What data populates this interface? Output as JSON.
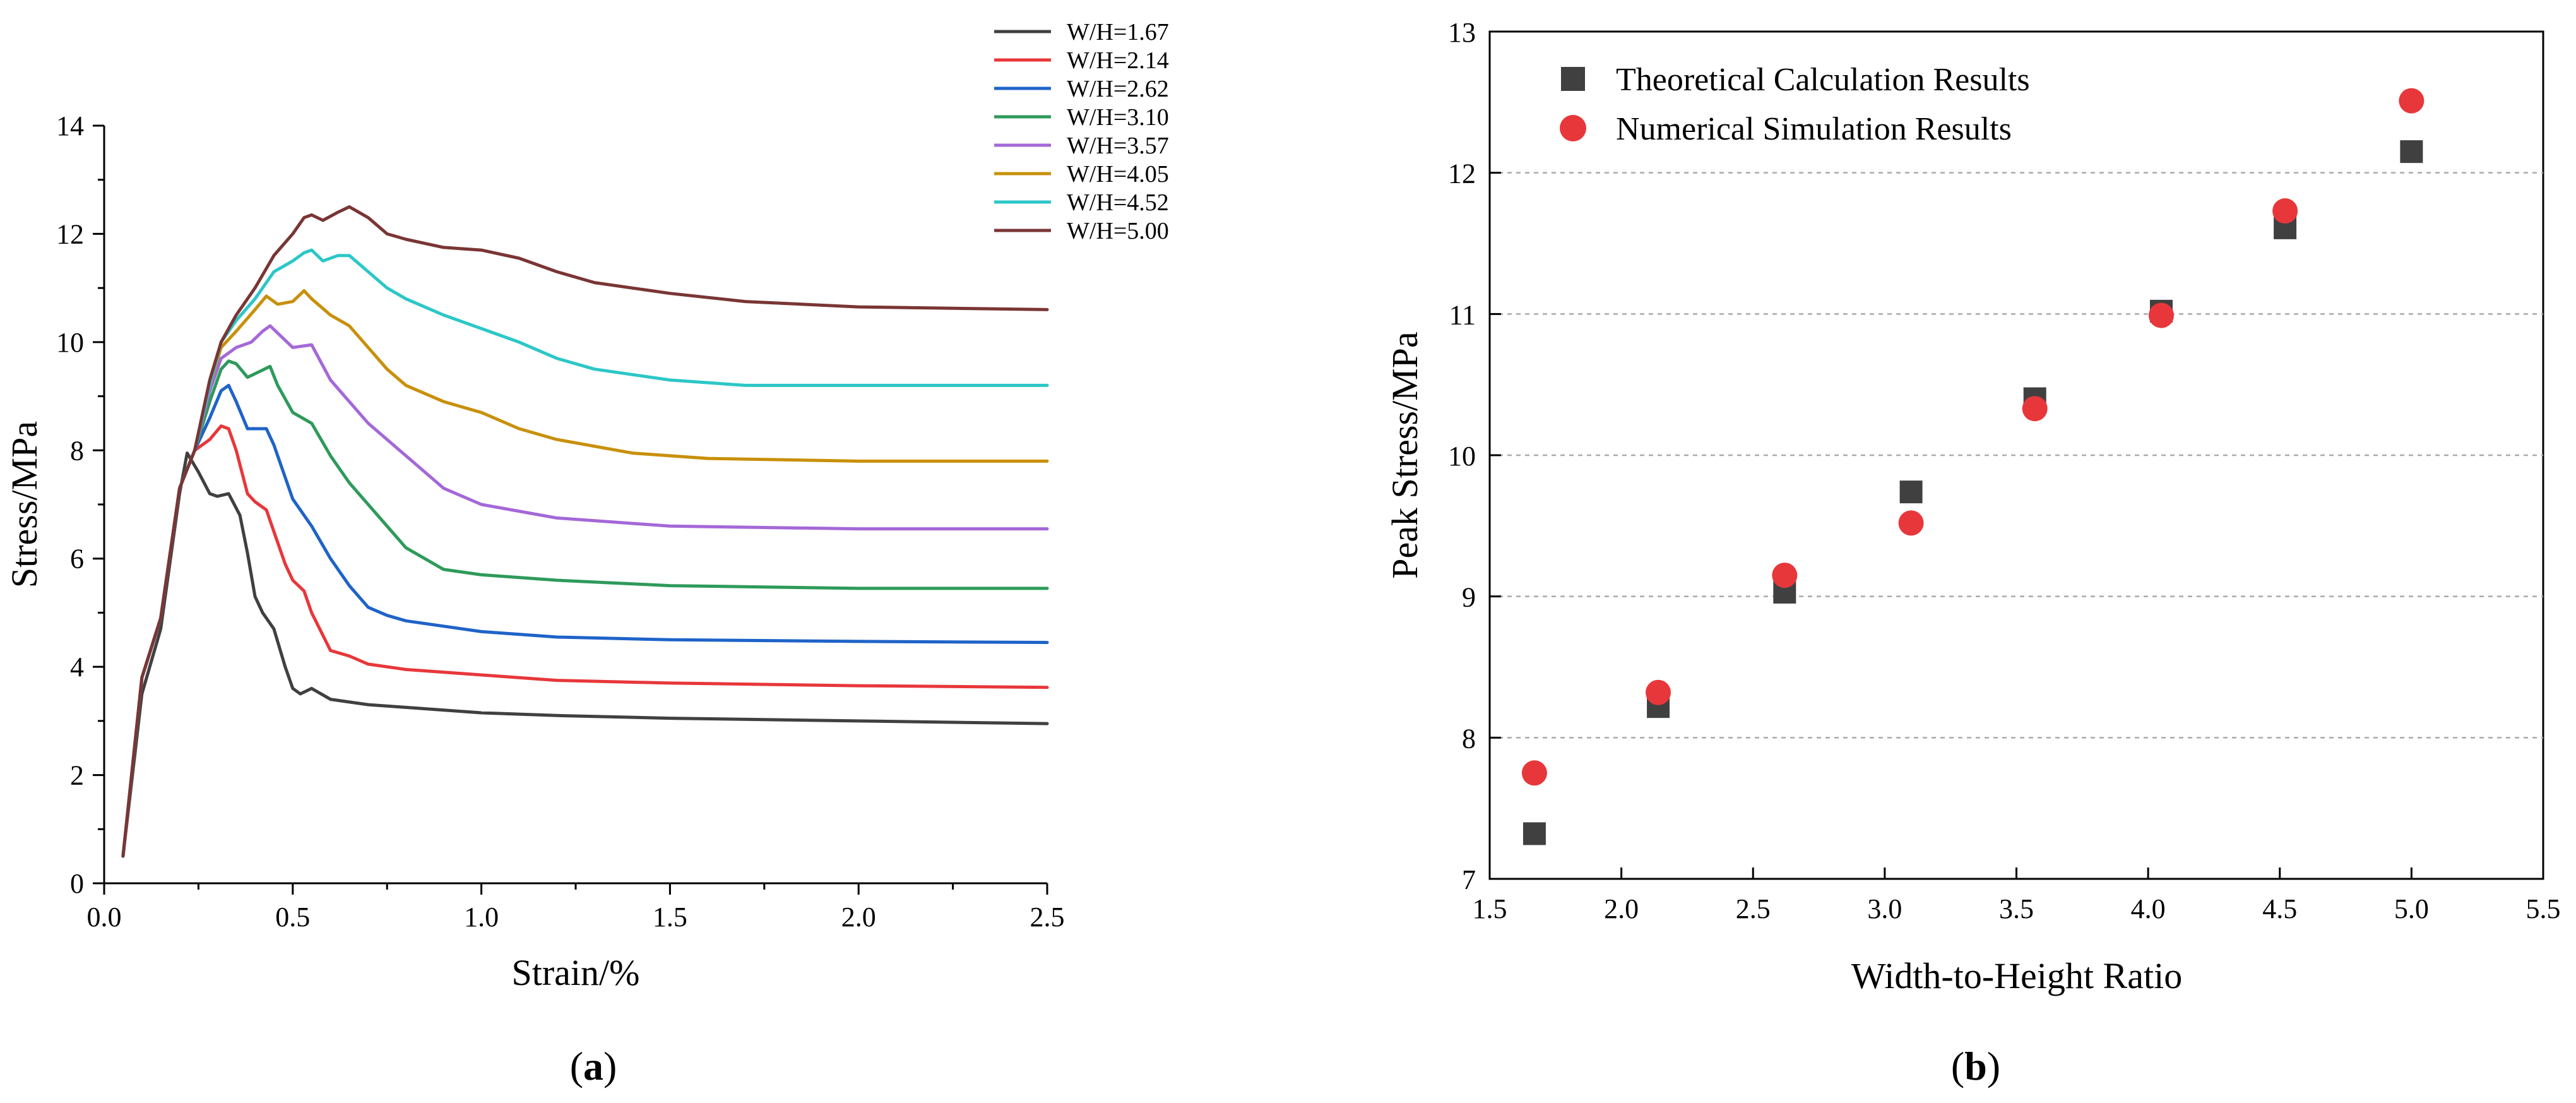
{
  "chart_data": [
    {
      "type": "line",
      "title": "",
      "panel_label": "a",
      "xlabel": "Strain/%",
      "ylabel": "Stress/MPa",
      "xlim": [
        0.0,
        2.5
      ],
      "ylim": [
        0,
        14
      ],
      "xticks": [
        0.0,
        0.5,
        1.0,
        1.5,
        2.0,
        2.5
      ],
      "xtick_labels": [
        "0.0",
        "0.5",
        "1.0",
        "1.5",
        "2.0",
        "2.5"
      ],
      "yticks": [
        0,
        2,
        4,
        6,
        8,
        10,
        12,
        14
      ],
      "ytick_labels": [
        "0",
        "2",
        "4",
        "6",
        "8",
        "10",
        "12",
        "14"
      ],
      "legend_position": "top-right",
      "series": [
        {
          "name": "W/H=1.67",
          "color": "#404040",
          "x": [
            0.05,
            0.1,
            0.15,
            0.2,
            0.22,
            0.25,
            0.28,
            0.3,
            0.33,
            0.36,
            0.38,
            0.4,
            0.42,
            0.45,
            0.48,
            0.5,
            0.52,
            0.55,
            0.6,
            0.65,
            0.7,
            0.8,
            1.0,
            1.2,
            1.5,
            2.0,
            2.5
          ],
          "y": [
            0.5,
            3.5,
            4.7,
            7.2,
            7.95,
            7.6,
            7.2,
            7.15,
            7.2,
            6.8,
            6.1,
            5.3,
            5.0,
            4.7,
            4.0,
            3.6,
            3.5,
            3.6,
            3.4,
            3.35,
            3.3,
            3.25,
            3.15,
            3.1,
            3.05,
            3.0,
            2.95
          ]
        },
        {
          "name": "W/H=2.14",
          "color": "#e8373a",
          "x": [
            0.05,
            0.1,
            0.15,
            0.2,
            0.24,
            0.28,
            0.31,
            0.33,
            0.35,
            0.38,
            0.4,
            0.43,
            0.45,
            0.48,
            0.5,
            0.53,
            0.55,
            0.6,
            0.65,
            0.7,
            0.8,
            1.0,
            1.2,
            1.5,
            2.0,
            2.5
          ],
          "y": [
            0.5,
            3.8,
            4.9,
            7.3,
            8.0,
            8.2,
            8.45,
            8.4,
            8.0,
            7.2,
            7.05,
            6.9,
            6.5,
            5.9,
            5.6,
            5.4,
            5.0,
            4.3,
            4.2,
            4.05,
            3.95,
            3.85,
            3.75,
            3.7,
            3.65,
            3.62
          ]
        },
        {
          "name": "W/H=2.62",
          "color": "#1e63c8",
          "x": [
            0.05,
            0.1,
            0.15,
            0.2,
            0.24,
            0.28,
            0.31,
            0.33,
            0.35,
            0.38,
            0.4,
            0.43,
            0.45,
            0.48,
            0.5,
            0.55,
            0.6,
            0.65,
            0.7,
            0.75,
            0.8,
            1.0,
            1.2,
            1.5,
            2.0,
            2.5
          ],
          "y": [
            0.5,
            3.8,
            4.9,
            7.3,
            8.0,
            8.6,
            9.1,
            9.2,
            8.9,
            8.4,
            8.4,
            8.4,
            8.1,
            7.5,
            7.1,
            6.6,
            6.0,
            5.5,
            5.1,
            4.95,
            4.85,
            4.65,
            4.55,
            4.5,
            4.47,
            4.45
          ]
        },
        {
          "name": "W/H=3.10",
          "color": "#2e9a5a",
          "x": [
            0.05,
            0.1,
            0.15,
            0.2,
            0.24,
            0.28,
            0.31,
            0.33,
            0.35,
            0.38,
            0.41,
            0.44,
            0.46,
            0.5,
            0.55,
            0.6,
            0.65,
            0.7,
            0.75,
            0.8,
            0.9,
            1.0,
            1.2,
            1.5,
            2.0,
            2.5
          ],
          "y": [
            0.5,
            3.8,
            4.9,
            7.3,
            8.0,
            8.9,
            9.5,
            9.65,
            9.6,
            9.35,
            9.45,
            9.55,
            9.2,
            8.7,
            8.5,
            7.9,
            7.4,
            7.0,
            6.6,
            6.2,
            5.8,
            5.7,
            5.6,
            5.5,
            5.45,
            5.45
          ]
        },
        {
          "name": "W/H=3.57",
          "color": "#a468d8",
          "x": [
            0.05,
            0.1,
            0.15,
            0.2,
            0.24,
            0.28,
            0.31,
            0.35,
            0.39,
            0.42,
            0.44,
            0.47,
            0.5,
            0.55,
            0.6,
            0.65,
            0.7,
            0.75,
            0.8,
            0.85,
            0.9,
            1.0,
            1.2,
            1.5,
            2.0,
            2.5
          ],
          "y": [
            0.5,
            3.8,
            4.9,
            7.3,
            8.0,
            9.1,
            9.7,
            9.9,
            10.0,
            10.2,
            10.3,
            10.1,
            9.9,
            9.95,
            9.3,
            8.9,
            8.5,
            8.2,
            7.9,
            7.6,
            7.3,
            7.0,
            6.75,
            6.6,
            6.55,
            6.55
          ]
        },
        {
          "name": "W/H=4.05",
          "color": "#c8900a",
          "x": [
            0.05,
            0.1,
            0.15,
            0.2,
            0.24,
            0.28,
            0.31,
            0.35,
            0.4,
            0.43,
            0.46,
            0.5,
            0.53,
            0.55,
            0.6,
            0.65,
            0.7,
            0.75,
            0.8,
            0.9,
            1.0,
            1.1,
            1.2,
            1.4,
            1.6,
            2.0,
            2.5
          ],
          "y": [
            0.5,
            3.8,
            4.9,
            7.3,
            8.0,
            9.2,
            9.9,
            10.2,
            10.6,
            10.85,
            10.7,
            10.75,
            10.95,
            10.8,
            10.5,
            10.3,
            9.9,
            9.5,
            9.2,
            8.9,
            8.7,
            8.4,
            8.2,
            7.95,
            7.85,
            7.8,
            7.8
          ]
        },
        {
          "name": "W/H=4.52",
          "color": "#2cc7c7",
          "x": [
            0.05,
            0.1,
            0.15,
            0.2,
            0.24,
            0.28,
            0.31,
            0.35,
            0.4,
            0.45,
            0.5,
            0.53,
            0.55,
            0.58,
            0.62,
            0.65,
            0.7,
            0.75,
            0.8,
            0.9,
            1.0,
            1.1,
            1.2,
            1.3,
            1.5,
            1.7,
            2.0,
            2.5
          ],
          "y": [
            0.5,
            3.8,
            4.9,
            7.3,
            8.0,
            9.2,
            10.0,
            10.4,
            10.8,
            11.3,
            11.5,
            11.65,
            11.7,
            11.5,
            11.6,
            11.6,
            11.3,
            11.0,
            10.8,
            10.5,
            10.25,
            10.0,
            9.7,
            9.5,
            9.3,
            9.2,
            9.2,
            9.2
          ]
        },
        {
          "name": "W/H=5.00",
          "color": "#7a3535",
          "x": [
            0.05,
            0.1,
            0.15,
            0.2,
            0.24,
            0.28,
            0.31,
            0.35,
            0.4,
            0.45,
            0.5,
            0.53,
            0.55,
            0.58,
            0.62,
            0.65,
            0.7,
            0.75,
            0.8,
            0.9,
            1.0,
            1.1,
            1.2,
            1.3,
            1.5,
            1.7,
            2.0,
            2.5
          ],
          "y": [
            0.5,
            3.8,
            4.9,
            7.3,
            8.0,
            9.3,
            10.0,
            10.5,
            11.0,
            11.6,
            12.0,
            12.3,
            12.35,
            12.25,
            12.4,
            12.5,
            12.3,
            12.0,
            11.9,
            11.75,
            11.7,
            11.55,
            11.3,
            11.1,
            10.9,
            10.75,
            10.65,
            10.6
          ]
        }
      ]
    },
    {
      "type": "scatter",
      "title": "",
      "panel_label": "b",
      "xlabel": "Width-to-Height Ratio",
      "ylabel": "Peak Stress/MPa",
      "xlim": [
        1.5,
        5.5
      ],
      "ylim": [
        7,
        13
      ],
      "xticks": [
        1.5,
        2.0,
        2.5,
        3.0,
        3.5,
        4.0,
        4.5,
        5.0,
        5.5
      ],
      "xtick_labels": [
        "1.5",
        "2.0",
        "2.5",
        "3.0",
        "3.5",
        "4.0",
        "4.5",
        "5.0",
        "5.5"
      ],
      "yticks": [
        7,
        8,
        9,
        10,
        11,
        12,
        13
      ],
      "ytick_labels": [
        "7",
        "8",
        "9",
        "10",
        "11",
        "12",
        "13"
      ],
      "grid": true,
      "legend_position": "top-left",
      "series": [
        {
          "name": "Theoretical Calculation Results",
          "marker": "square",
          "color": "#404040",
          "x": [
            1.67,
            2.14,
            2.62,
            3.1,
            3.57,
            4.05,
            4.52,
            5.0
          ],
          "y": [
            7.32,
            8.22,
            9.03,
            9.74,
            10.4,
            11.02,
            11.61,
            12.15
          ]
        },
        {
          "name": "Numerical Simulation Results",
          "marker": "circle",
          "color": "#e8373a",
          "x": [
            1.67,
            2.14,
            2.62,
            3.1,
            3.57,
            4.05,
            4.52,
            5.0
          ],
          "y": [
            7.75,
            8.32,
            9.15,
            9.52,
            10.33,
            10.99,
            11.73,
            12.51
          ]
        }
      ]
    }
  ]
}
